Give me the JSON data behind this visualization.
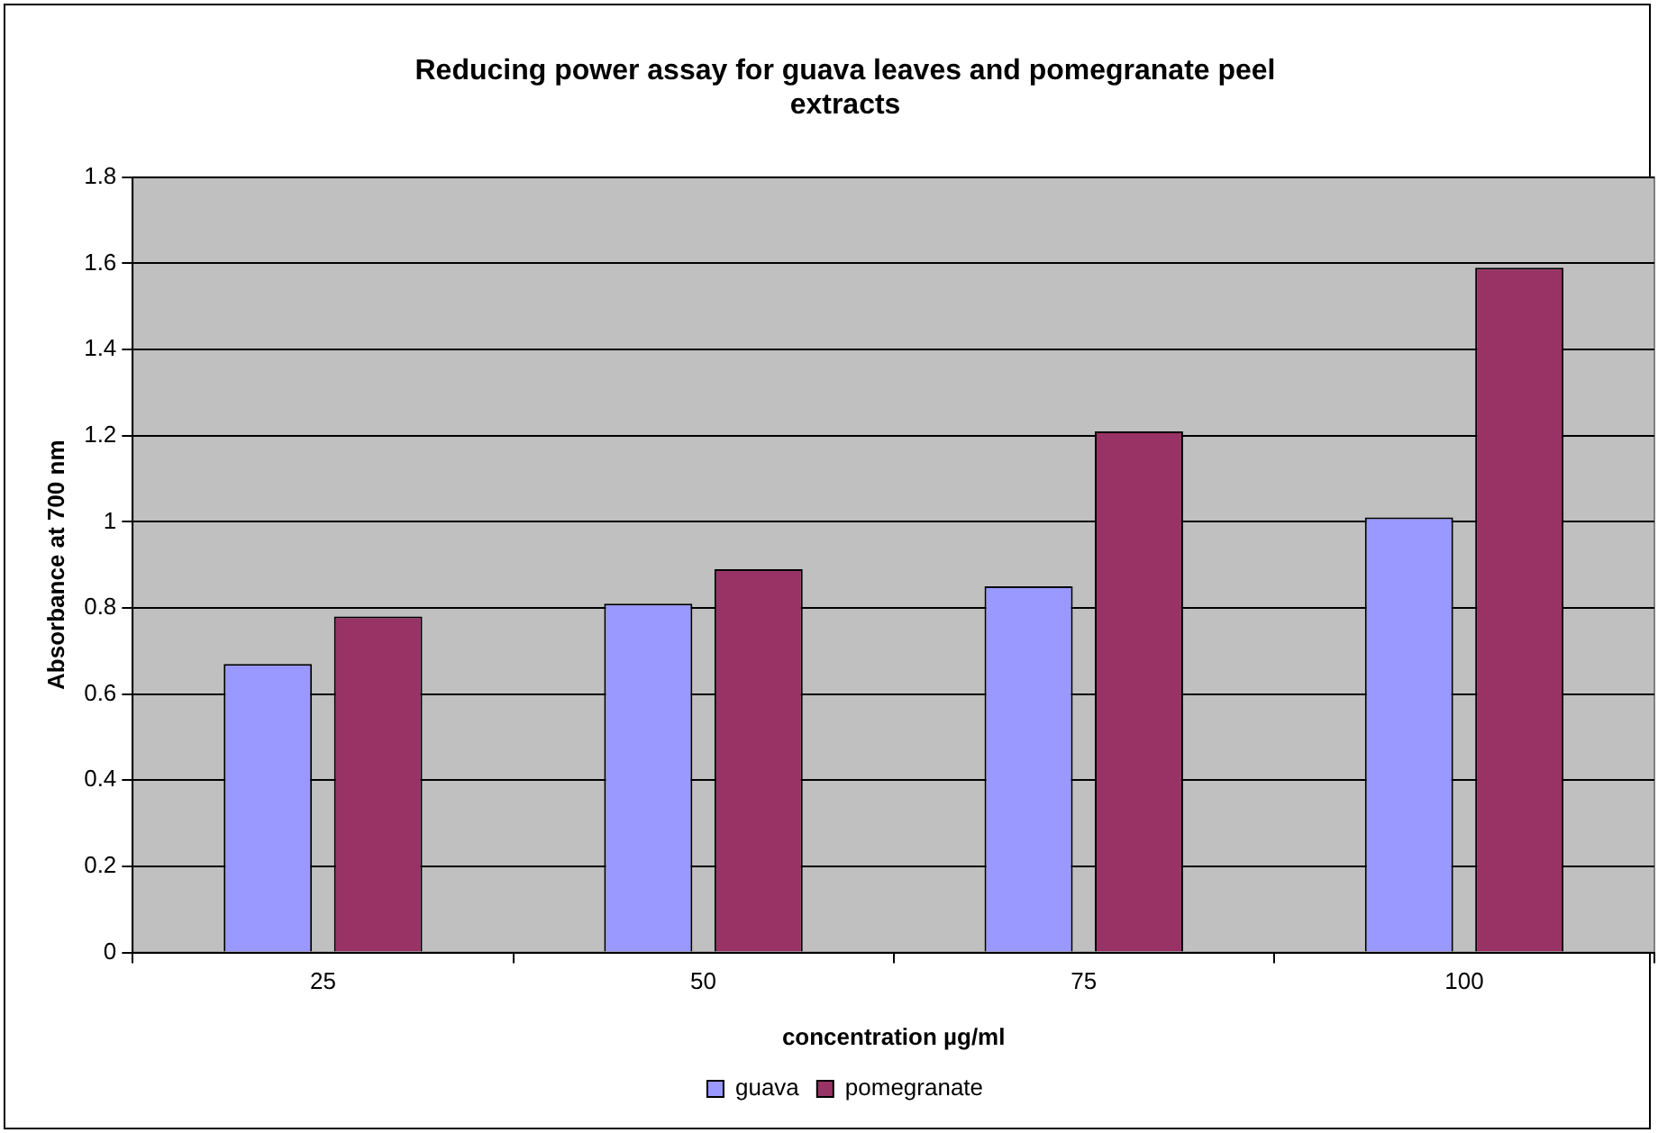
{
  "chart_data": {
    "type": "bar",
    "title": "Reducing power assay for guava leaves and pomegranate peel extracts",
    "xlabel": "concentration µg/ml",
    "ylabel": "Absorbance at 700 nm",
    "categories": [
      "25",
      "50",
      "75",
      "100"
    ],
    "series": [
      {
        "name": "guava",
        "color": "#9999ff",
        "values": [
          0.67,
          0.81,
          0.85,
          1.01
        ]
      },
      {
        "name": "pomegranate",
        "color": "#993366",
        "values": [
          0.78,
          0.89,
          1.21,
          1.59
        ]
      }
    ],
    "ylim": [
      0,
      1.8
    ],
    "yticks": [
      0,
      0.2,
      0.4,
      0.6,
      0.8,
      1,
      1.2,
      1.4,
      1.6,
      1.8
    ],
    "grid": "y",
    "legend": "bottom"
  }
}
